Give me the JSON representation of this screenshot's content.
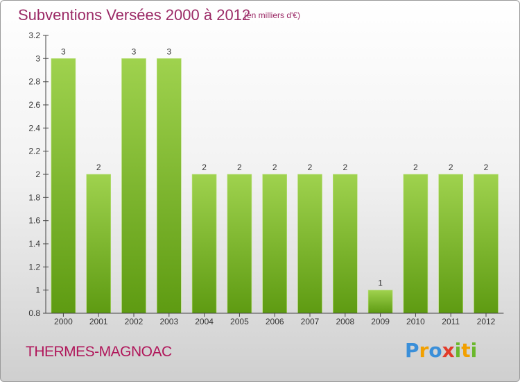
{
  "header": {
    "title": "Subventions Versées 2000 à 2012",
    "unit": "(en milliers d'€)"
  },
  "footer": {
    "commune": "THERMES-MAGNOAC",
    "logo_letters": [
      {
        "ch": "P",
        "color": "#3a8fd9"
      },
      {
        "ch": "r",
        "color": "#f2a000"
      },
      {
        "ch": "o",
        "color": "#3a8fd9"
      },
      {
        "ch": "x",
        "color": "#e23b2a"
      },
      {
        "ch": "i",
        "color": "#6bb82c"
      },
      {
        "ch": "t",
        "color": "#f2a000"
      },
      {
        "ch": "i",
        "color": "#6bb82c"
      }
    ]
  },
  "colors": {
    "bar_top": "#9fd24e",
    "bar_bottom": "#5e9b12",
    "axis": "#444444",
    "text": "#333333"
  },
  "chart_data": {
    "type": "bar",
    "categories": [
      "2000",
      "2001",
      "2002",
      "2003",
      "2004",
      "2005",
      "2006",
      "2007",
      "2008",
      "2009",
      "2010",
      "2011",
      "2012"
    ],
    "values": [
      3,
      2,
      3,
      3,
      2,
      2,
      2,
      2,
      2,
      1,
      2,
      2,
      2
    ],
    "data_labels": [
      "3",
      "2",
      "3",
      "3",
      "2",
      "2",
      "2",
      "2",
      "2",
      "1",
      "2",
      "2",
      "2"
    ],
    "ylim": [
      0.8,
      3.2
    ],
    "yticks": [
      0.8,
      1,
      1.2,
      1.4,
      1.6,
      1.8,
      2,
      2.2,
      2.4,
      2.6,
      2.8,
      3,
      3.2
    ],
    "ytick_labels": [
      "0.8",
      "1",
      "1.2",
      "1.4",
      "1.6",
      "1.8",
      "2",
      "2.2",
      "2.4",
      "2.6",
      "2.8",
      "3",
      "3.2"
    ],
    "grid": false,
    "legend": "none"
  }
}
